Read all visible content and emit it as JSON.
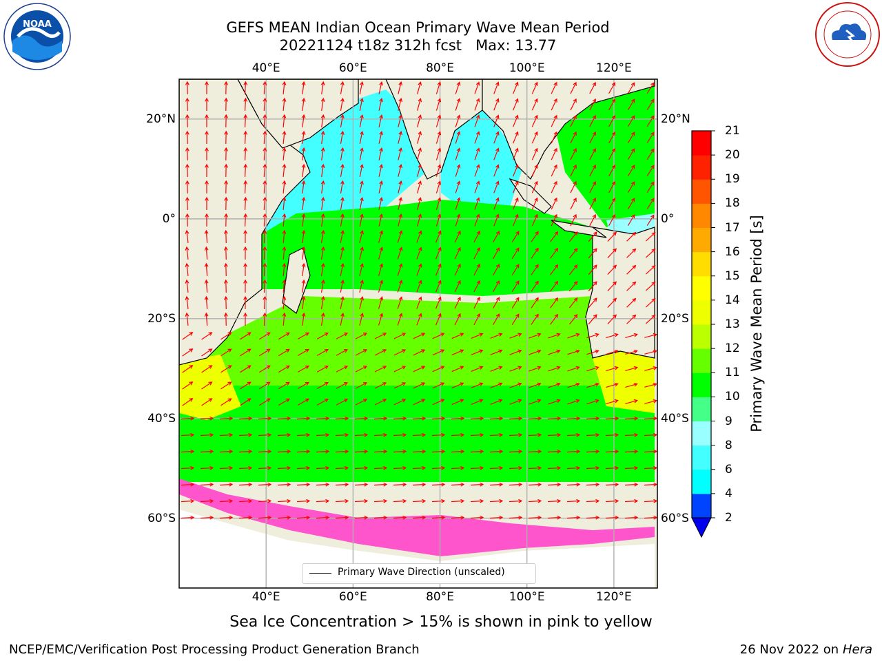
{
  "title_line1": "GEFS MEAN Indian Ocean Primary Wave Mean Period",
  "title_line2": "20221124 t18z 312h fcst   Max: 13.77",
  "axes": {
    "lon_ticks": [
      "40°E",
      "60°E",
      "80°E",
      "100°E",
      "120°E"
    ],
    "lat_ticks": [
      "20°N",
      "0°",
      "20°S",
      "40°S",
      "60°S"
    ]
  },
  "legend": {
    "label": "Primary Wave Direction (unscaled)"
  },
  "colorbar": {
    "label": "Primary Wave Mean Period [s]",
    "ticks": [
      "2",
      "4",
      "6",
      "8",
      "9",
      "10",
      "11",
      "12",
      "13",
      "14",
      "15",
      "16",
      "17",
      "18",
      "19",
      "20",
      "21"
    ],
    "colors": [
      "#0044ff",
      "#00ffff",
      "#44ffff",
      "#99ffff",
      "#44ff88",
      "#00ff00",
      "#66ff00",
      "#bbff00",
      "#eeff00",
      "#ffff00",
      "#ffdd00",
      "#ffaa00",
      "#ff8800",
      "#ff5500",
      "#ff2200",
      "#ff0000"
    ],
    "extend_color": "#0000ee"
  },
  "subtitle": "Sea Ice Concentration > 15% is shown in pink to yellow",
  "footer": {
    "left": "NCEP/EMC/Verification Post Processing Product Generation Branch",
    "date": "26 Nov 2022 on",
    "host": "Hera"
  },
  "logos": {
    "noaa_text": "NOAA",
    "left": "noaa-logo",
    "right": "nws-logo"
  },
  "map": {
    "lon_range": [
      20,
      130
    ],
    "lat_range": [
      -74,
      28
    ],
    "land_color": "#efeedd",
    "ice_color": "#ff55cc",
    "arrow_color": "#ff0000",
    "grid_color": "#b0b0b0"
  }
}
